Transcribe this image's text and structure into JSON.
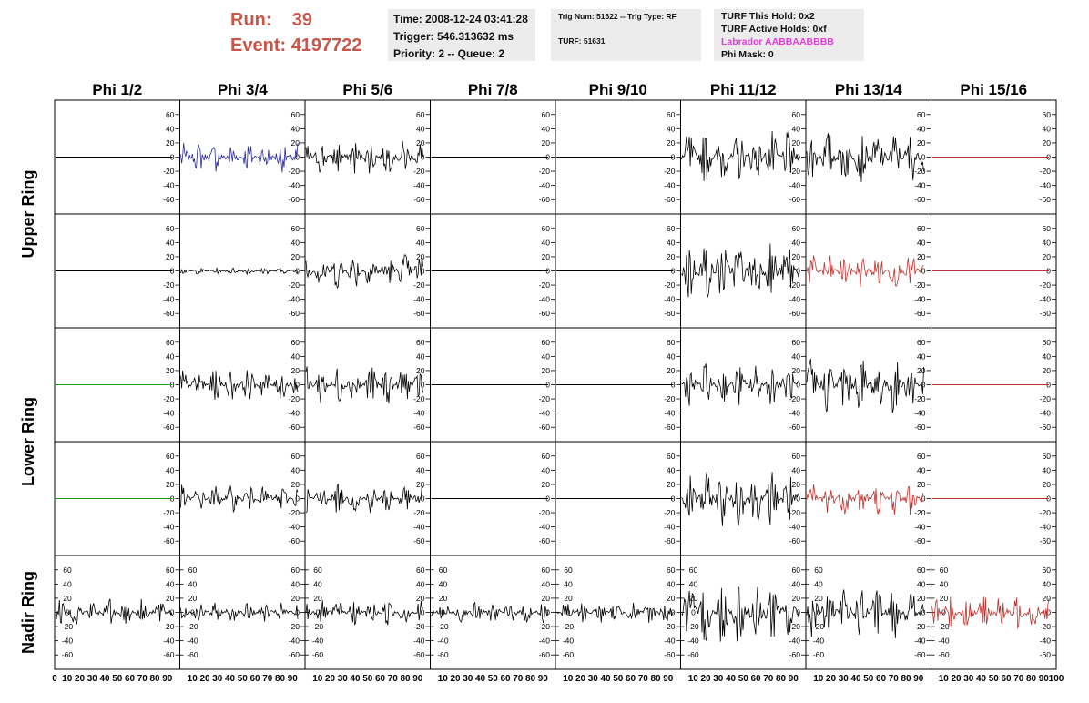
{
  "header": {
    "run_label": "Run:",
    "run_value": "39",
    "event_label": "Event:",
    "event_value": "4197722"
  },
  "info1": {
    "time": "Time: 2008-12-24 03:41:28",
    "trigger": "Trigger: 546.313632 ms",
    "priority": "Priority: 2 -- Queue: 2"
  },
  "info2": {
    "trig": "Trig Num: 51622 -- Trig Type: RF",
    "turf": "TURF: 51631"
  },
  "info3": {
    "hold": "TURF This Hold: 0x2",
    "active": "TURF Active Holds: 0xf",
    "labrador": "Labrador AABBAABBBB",
    "phimask": "Phi Mask: 0"
  },
  "colors": {
    "run_text": "#c8564a",
    "labrador": "#e23ed8",
    "trace_black": "#000000",
    "trace_blue": "#2a2a9a",
    "trace_red": "#c0302c",
    "trace_green": "#1a9a1a"
  },
  "chart_data": {
    "type": "line",
    "columns": [
      "Phi 1/2",
      "Phi 3/4",
      "Phi 5/6",
      "Phi 7/8",
      "Phi 9/10",
      "Phi 11/12",
      "Phi 13/14",
      "Phi 15/16"
    ],
    "rows": [
      "Upper Ring",
      "Lower Ring",
      "Nadir Ring"
    ],
    "ylim": [
      -70,
      70
    ],
    "yticks": [
      -60,
      -40,
      -20,
      0,
      20,
      40,
      60
    ],
    "xlim": [
      0,
      100
    ],
    "xtick_labels": [
      "0",
      "10",
      "20",
      "30",
      "40",
      "50",
      "60",
      "70",
      "80",
      "90",
      "100"
    ],
    "panels": [
      [
        {
          "amp": 0,
          "color": "black"
        },
        {
          "amp": 22,
          "color": "blue"
        },
        {
          "amp": 26,
          "color": "black"
        },
        {
          "amp": 0,
          "color": "black"
        },
        {
          "amp": 0,
          "color": "black"
        },
        {
          "amp": 38,
          "color": "black"
        },
        {
          "amp": 38,
          "color": "black"
        },
        {
          "amp": 0,
          "color": "red"
        }
      ],
      [
        {
          "amp": 0,
          "color": "black"
        },
        {
          "amp": 5,
          "color": "black"
        },
        {
          "amp": 28,
          "color": "black"
        },
        {
          "amp": 0,
          "color": "black"
        },
        {
          "amp": 0,
          "color": "black"
        },
        {
          "amp": 48,
          "color": "black"
        },
        {
          "amp": 25,
          "color": "red"
        },
        {
          "amp": 0,
          "color": "red"
        }
      ],
      [
        {
          "amp": 0,
          "color": "green"
        },
        {
          "amp": 24,
          "color": "black"
        },
        {
          "amp": 30,
          "color": "black"
        },
        {
          "amp": 0,
          "color": "black"
        },
        {
          "amp": 0,
          "color": "black"
        },
        {
          "amp": 30,
          "color": "black"
        },
        {
          "amp": 45,
          "color": "black"
        },
        {
          "amp": 0,
          "color": "red"
        }
      ],
      [
        {
          "amp": 0,
          "color": "green"
        },
        {
          "amp": 20,
          "color": "black"
        },
        {
          "amp": 22,
          "color": "black"
        },
        {
          "amp": 0,
          "color": "black"
        },
        {
          "amp": 0,
          "color": "black"
        },
        {
          "amp": 42,
          "color": "black"
        },
        {
          "amp": 25,
          "color": "red"
        },
        {
          "amp": 0,
          "color": "red"
        }
      ],
      [
        {
          "amp": 20,
          "color": "black"
        },
        {
          "amp": 14,
          "color": "black"
        },
        {
          "amp": 18,
          "color": "black"
        },
        {
          "amp": 16,
          "color": "black"
        },
        {
          "amp": 16,
          "color": "black"
        },
        {
          "amp": 48,
          "color": "black"
        },
        {
          "amp": 38,
          "color": "black"
        },
        {
          "amp": 25,
          "color": "red"
        }
      ]
    ]
  }
}
